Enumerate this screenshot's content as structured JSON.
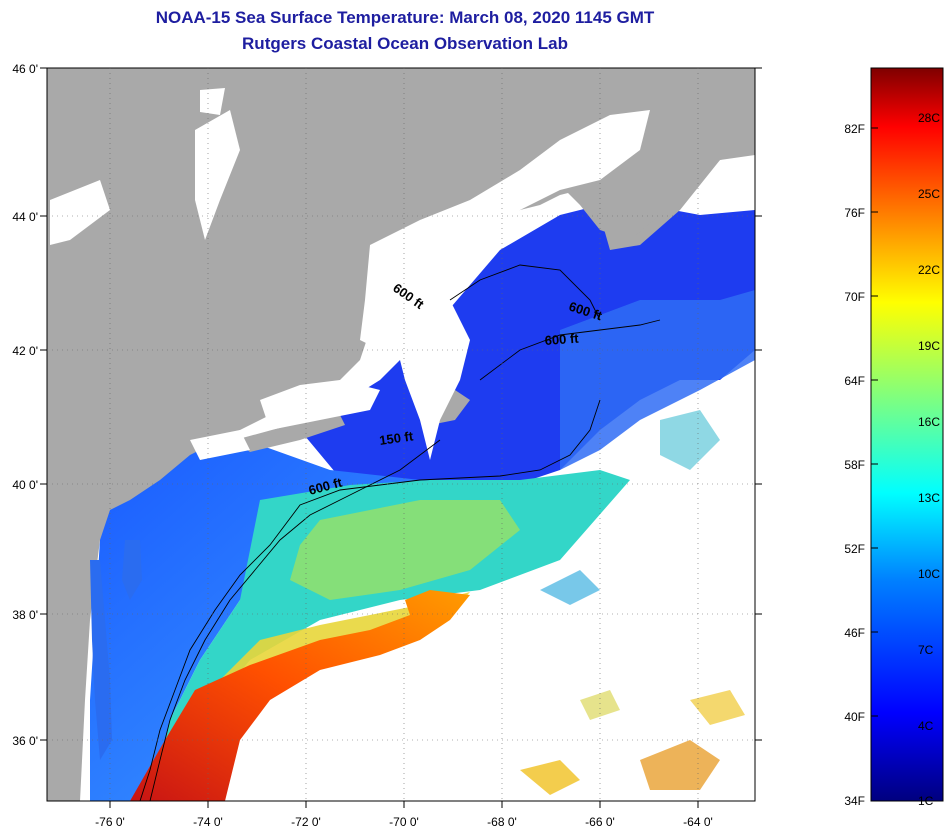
{
  "header": {
    "title": "NOAA-15 Sea Surface Temperature:  March 08, 2020 1145 GMT",
    "subtitle": "Rutgers Coastal Ocean Observation Lab"
  },
  "map": {
    "lat_labels": [
      "46 0'",
      "44 0'",
      "42 0'",
      "40 0'",
      "38 0'",
      "36 0'"
    ],
    "lon_labels": [
      "-76 0'",
      "-74 0'",
      "-72 0'",
      "-70 0'",
      "-68 0'",
      "-66 0'",
      "-64 0'"
    ],
    "contour_labels": [
      "600 ft",
      "600 ft",
      "600 ft",
      "150 ft",
      "600 ft"
    ],
    "lat_range": [
      35,
      46
    ],
    "lon_range": [
      -77,
      -63
    ],
    "colors": {
      "land": "#a9a9a9",
      "cloud": "#ffffff",
      "contour": "#000000"
    }
  },
  "colorbar": {
    "f_labels": [
      "82F",
      "76F",
      "70F",
      "64F",
      "58F",
      "52F",
      "46F",
      "40F",
      "34F"
    ],
    "c_labels": [
      "28C",
      "25C",
      "22C",
      "19C",
      "16C",
      "13C",
      "10C",
      "7C",
      "4C",
      "1C"
    ],
    "stops": [
      "#00007f",
      "#0000ff",
      "#007fff",
      "#00ffff",
      "#7fff7f",
      "#ffff00",
      "#ff7f00",
      "#ff0000",
      "#7f0000"
    ]
  }
}
